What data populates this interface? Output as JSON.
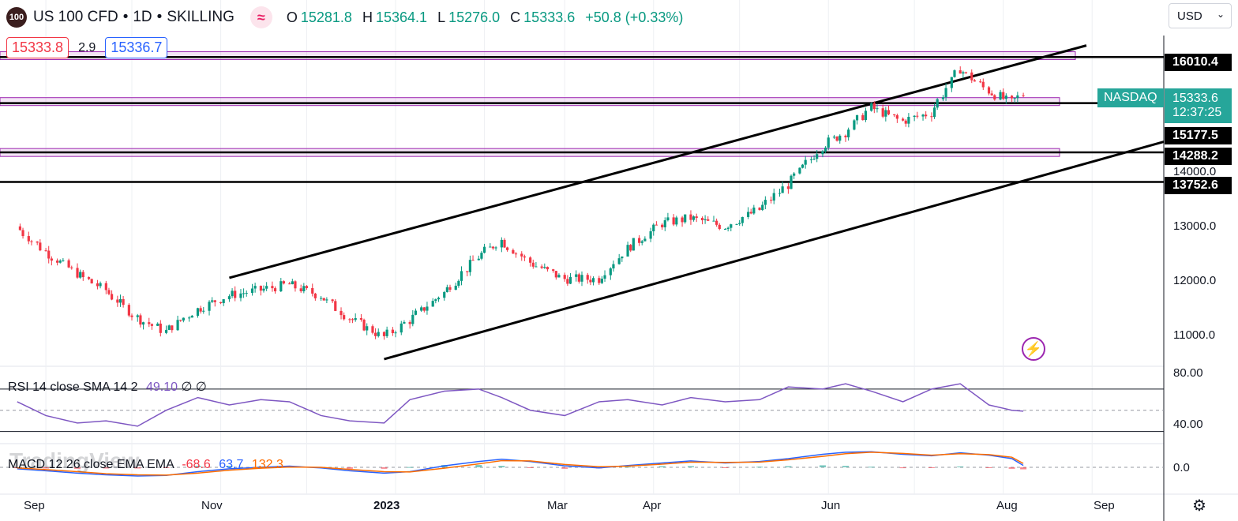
{
  "header": {
    "logo_text": "100",
    "title": "US 100 CFD",
    "timeframe": "1D",
    "source": "SKILLING",
    "ohlc": {
      "o_label": "O",
      "o": "15281.8",
      "h_label": "H",
      "h": "15364.1",
      "l_label": "L",
      "l": "15276.0",
      "c_label": "C",
      "c": "15333.6",
      "change": "+50.8 (+0.33%)"
    }
  },
  "trade": {
    "sell": "15333.8",
    "spread": "2.9",
    "buy": "15336.7"
  },
  "currency": "USD",
  "price_tags": {
    "nasdaq_label": "NASDAQ",
    "last_price": "15333.6",
    "countdown": "12:37:25",
    "levels": [
      "16010.4",
      "15177.5",
      "14288.2",
      "13752.6"
    ]
  },
  "price_axis": [
    "16000.0",
    "14000.0",
    "13000.0",
    "12000.0",
    "11000.0"
  ],
  "rsi_axis": [
    "80.00",
    "40.00"
  ],
  "macd_axis": [
    "0.0"
  ],
  "time_axis": [
    "Sep",
    "Nov",
    "2023",
    "Mar",
    "Apr",
    "Jun",
    "Aug",
    "Sep"
  ],
  "rsi_legend": {
    "label": "RSI 14 close SMA 14 2",
    "value": "49.10",
    "extra": "∅ ∅"
  },
  "macd_legend": {
    "label": "MACD 12 26 close EMA EMA",
    "hist": "-68.6",
    "macd": "63.7",
    "signal": "132.3"
  },
  "watermark": "TradingView",
  "colors": {
    "up": "#089981",
    "down": "#f23645",
    "rsi": "#7e57c2",
    "macd": "#2962ff",
    "signal": "#ff6d00",
    "zone": "#9c27b0"
  },
  "chart_data": {
    "type": "candlestick",
    "title": "US 100 CFD · 1D · SKILLING",
    "ylim": [
      10450,
      16400
    ],
    "x": [
      "2022-08-22",
      "2022-09-01",
      "2022-09-12",
      "2022-09-22",
      "2022-10-03",
      "2022-10-13",
      "2022-10-24",
      "2022-11-04",
      "2022-11-15",
      "2022-11-25",
      "2022-12-06",
      "2022-12-16",
      "2022-12-28",
      "2023-01-06",
      "2023-01-18",
      "2023-01-30",
      "2023-02-07",
      "2023-02-17",
      "2023-03-01",
      "2023-03-13",
      "2023-03-23",
      "2023-04-04",
      "2023-04-14",
      "2023-04-26",
      "2023-05-08",
      "2023-05-18",
      "2023-05-30",
      "2023-06-07",
      "2023-06-16",
      "2023-06-27",
      "2023-07-07",
      "2023-07-17",
      "2023-07-27",
      "2023-08-04",
      "2023-08-08"
    ],
    "close": [
      12950,
      12500,
      12100,
      11800,
      11300,
      11050,
      11450,
      11700,
      11800,
      11900,
      11700,
      11300,
      10950,
      11250,
      11750,
      12400,
      12700,
      12300,
      12000,
      12000,
      12550,
      13000,
      13100,
      12950,
      13250,
      13700,
      14400,
      14650,
      15100,
      14850,
      15000,
      15800,
      15400,
      15190,
      15333.6
    ],
    "horizontal_levels": [
      16010.4,
      15177.5,
      14288.2,
      13752.6
    ],
    "rsi": [
      58,
      45,
      38,
      40,
      35,
      50,
      62,
      55,
      60,
      58,
      45,
      40,
      38,
      60,
      68,
      70,
      62,
      50,
      45,
      58,
      60,
      55,
      62,
      58,
      60,
      72,
      70,
      75,
      68,
      58,
      70,
      75,
      55,
      50,
      49.1
    ],
    "macd": [
      -50,
      -120,
      -200,
      -260,
      -300,
      -280,
      -150,
      -50,
      0,
      40,
      -20,
      -120,
      -200,
      -150,
      50,
      200,
      280,
      200,
      50,
      -20,
      60,
      150,
      220,
      150,
      200,
      300,
      450,
      520,
      540,
      450,
      400,
      500,
      420,
      300,
      63.7
    ],
    "signal": [
      -20,
      -80,
      -150,
      -220,
      -260,
      -270,
      -200,
      -100,
      -30,
      10,
      0,
      -70,
      -150,
      -160,
      -30,
      120,
      230,
      220,
      100,
      20,
      40,
      110,
      180,
      170,
      180,
      260,
      380,
      470,
      520,
      480,
      420,
      470,
      440,
      350,
      132.3
    ]
  }
}
